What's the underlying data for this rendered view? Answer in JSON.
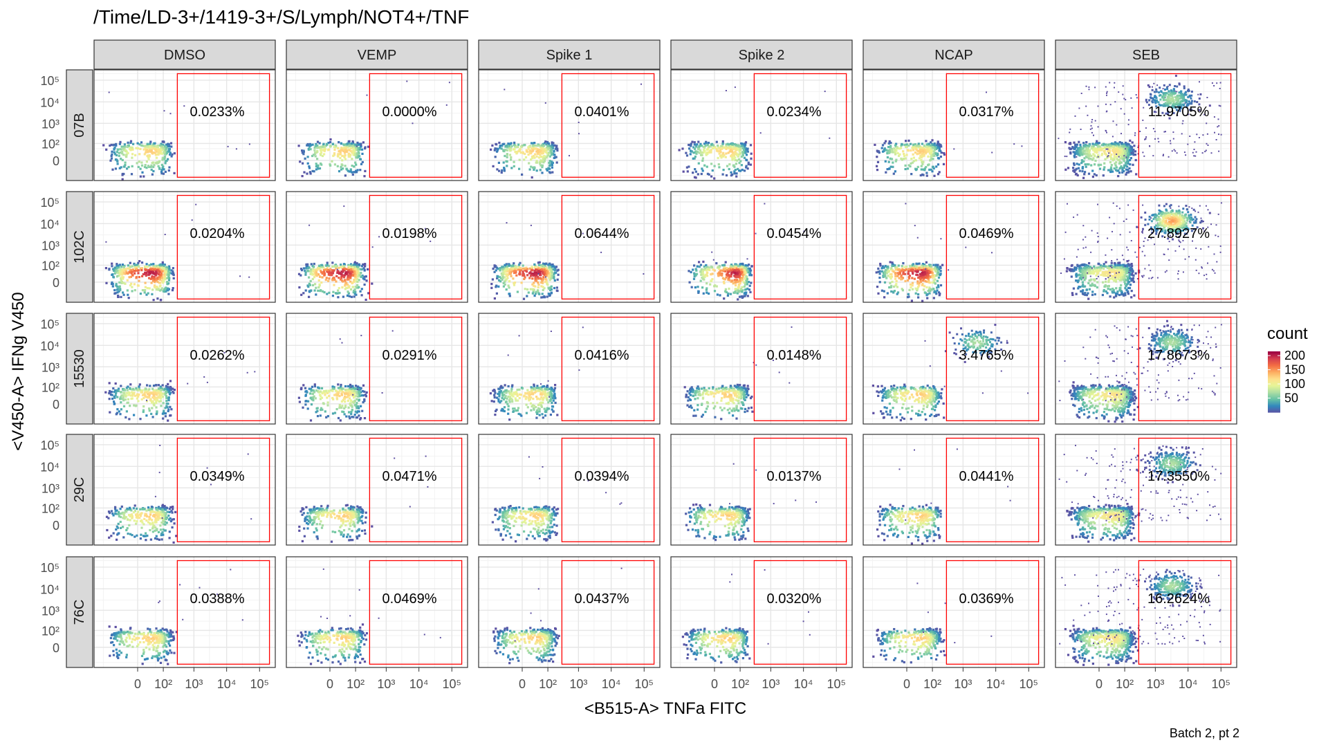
{
  "chart_data": {
    "type": "heatmap",
    "title": "/Time/LD-3+/1419-3+/S/Lymph/NOT4+/TNF",
    "xlabel": "<B515-A> TNFa FITC",
    "ylabel": "<V450-A> IFNg V450",
    "caption": "Batch 2, pt 2",
    "columns": [
      "DMSO",
      "VEMP",
      "Spike 1",
      "Spike 2",
      "NCAP",
      "SEB"
    ],
    "rows": [
      "07B",
      "102C",
      "15530",
      "29C",
      "76C"
    ],
    "gate_percent": [
      [
        "0.0233%",
        "0.0000%",
        "0.0401%",
        "0.0234%",
        "0.0317%",
        "11.9705%"
      ],
      [
        "0.0204%",
        "0.0198%",
        "0.0644%",
        "0.0454%",
        "0.0469%",
        "27.8927%"
      ],
      [
        "0.0262%",
        "0.0291%",
        "0.0416%",
        "0.0148%",
        "3.4765%",
        "17.8673%"
      ],
      [
        "0.0349%",
        "0.0471%",
        "0.0394%",
        "0.0137%",
        "0.0441%",
        "17.3550%"
      ],
      [
        "0.0388%",
        "0.0469%",
        "0.0437%",
        "0.0320%",
        "0.0369%",
        "16.2624%"
      ]
    ],
    "x_ticks": [
      {
        "value": 0,
        "label": "0"
      },
      {
        "value": 100,
        "label": "10²"
      },
      {
        "value": 1000,
        "label": "10³"
      },
      {
        "value": 10000,
        "label": "10⁴"
      },
      {
        "value": 100000,
        "label": "10⁵"
      }
    ],
    "y_ticks": [
      {
        "value": 0,
        "label": "0"
      },
      {
        "value": 100,
        "label": "10²"
      },
      {
        "value": 1000,
        "label": "10³"
      },
      {
        "value": 10000,
        "label": "10⁴"
      },
      {
        "value": 100000,
        "label": "10⁵"
      }
    ],
    "axis_scale": "biexponential",
    "gate": {
      "x_min": 300,
      "x_max": 200000,
      "y_min": -100,
      "y_max": 200000,
      "color": "#ff0000"
    },
    "legend": {
      "title": "count",
      "position": "right",
      "ticks": [
        {
          "value": 200,
          "label": "200"
        },
        {
          "value": 150,
          "label": "150"
        },
        {
          "value": 100,
          "label": "100"
        },
        {
          "value": 50,
          "label": "50"
        }
      ],
      "range": [
        0,
        215
      ],
      "palette": [
        "#5e4fa2",
        "#3288bd",
        "#66c2a5",
        "#abdda4",
        "#e6f598",
        "#fee08b",
        "#fdae61",
        "#f46d43",
        "#d53e4f",
        "#9e0142"
      ]
    },
    "grid": true,
    "strip_fill": "#d9d9d9",
    "panel_border": "#333333"
  }
}
